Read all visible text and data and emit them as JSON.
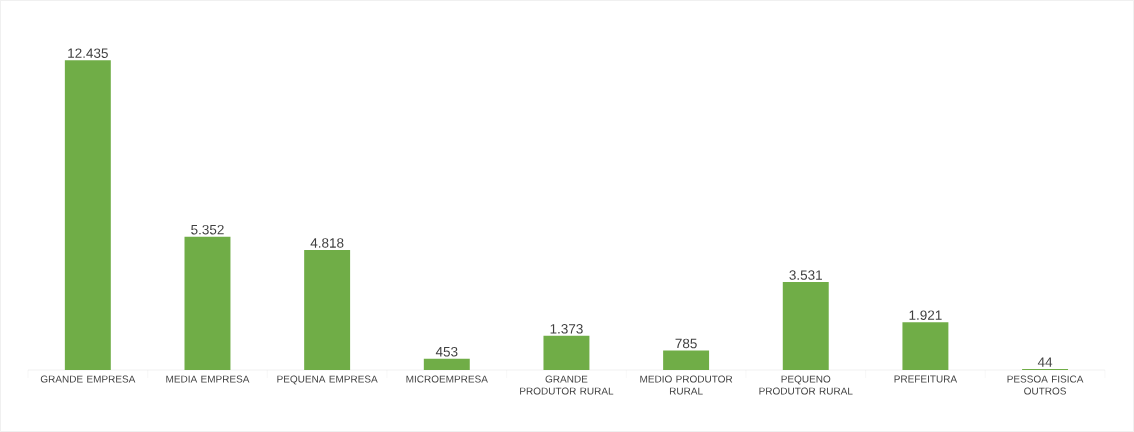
{
  "chart_data": {
    "type": "bar",
    "categories": [
      "GRANDE EMPRESA",
      "MEDIA EMPRESA",
      "PEQUENA EMPRESA",
      "MICROEMPRESA",
      "GRANDE PRODUTOR RURAL",
      "MEDIO PRODUTOR RURAL",
      "PEQUENO PRODUTOR RURAL",
      "PREFEITURA",
      "PESSOA FISICA OUTROS"
    ],
    "values": [
      12435,
      5352,
      4818,
      453,
      1373,
      785,
      3531,
      1921,
      44
    ],
    "value_labels": [
      "12.435",
      "5.352",
      "4.818",
      "453",
      "1.373",
      "785",
      "3.531",
      "1.921",
      "44"
    ],
    "color": "#70ad47",
    "tick_labels": "x"
  }
}
